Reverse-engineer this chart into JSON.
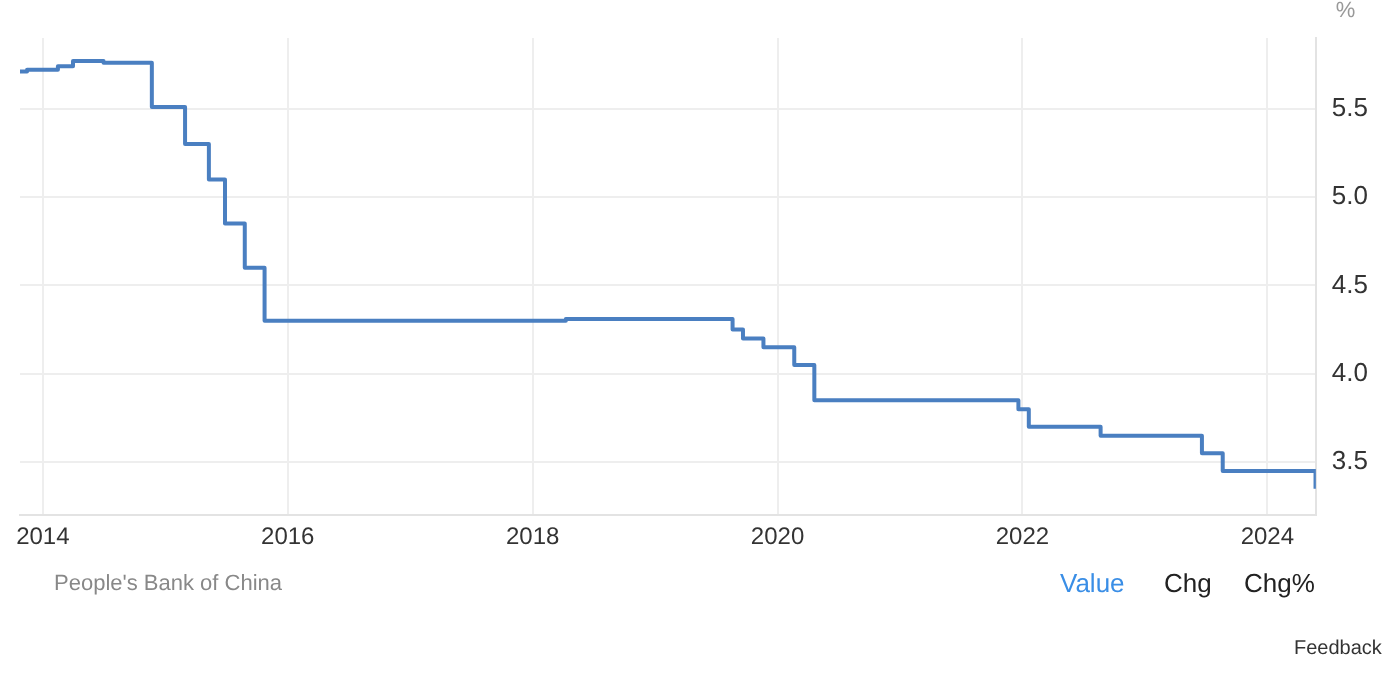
{
  "chart_data": {
    "type": "step",
    "ylabel": "%",
    "x": [
      "2013-10-25",
      "2013-11-15",
      "2014-02-15",
      "2014-04-01",
      "2014-07-01",
      "2014-11-22",
      "2015-03-01",
      "2015-05-11",
      "2015-06-28",
      "2015-08-26",
      "2015-10-24",
      "2018-04-10",
      "2019-08-20",
      "2019-09-20",
      "2019-11-20",
      "2020-02-20",
      "2020-04-20",
      "2021-12-20",
      "2022-01-20",
      "2022-08-22",
      "2023-06-20",
      "2023-08-21",
      "2024-05-24"
    ],
    "series": [
      {
        "color": "#4a7fc1",
        "values": [
          5.71,
          5.72,
          5.74,
          5.77,
          5.76,
          5.51,
          5.3,
          5.1,
          4.85,
          4.6,
          4.3,
          4.31,
          4.25,
          4.2,
          4.15,
          4.05,
          3.85,
          3.8,
          3.7,
          3.65,
          3.55,
          3.45,
          3.35
        ]
      }
    ],
    "xlim": [
      "2013-10-25",
      "2024-05-25"
    ],
    "xticks": [
      "2014",
      "2016",
      "2018",
      "2020",
      "2022",
      "2024"
    ],
    "ylim": [
      3.2,
      5.9
    ],
    "yticks": [
      {
        "value": 3.5,
        "label": "3.5"
      },
      {
        "value": 4,
        "label": "4.0"
      },
      {
        "value": 4.5,
        "label": "4.5"
      },
      {
        "value": 5,
        "label": "5.0"
      },
      {
        "value": 5.5,
        "label": "5.5"
      }
    ],
    "grid": true,
    "legend": false,
    "annotations": [
      "People's Bank of China",
      "Value",
      "Chg",
      "Chg%",
      "Feedback"
    ]
  }
}
